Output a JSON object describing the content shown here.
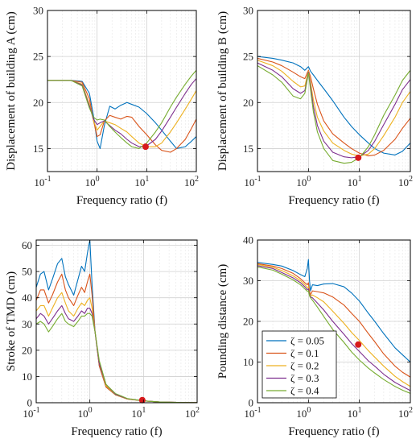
{
  "chart_data": [
    {
      "type": "line",
      "ylabel": "Displacement of building A (cm)",
      "xlabel": "Frequency ratio (f)",
      "xscale": "log",
      "xlim": [
        0.1,
        100
      ],
      "ylim": [
        12.5,
        30
      ],
      "yticks": [
        15,
        20,
        25,
        30
      ],
      "grid": true,
      "series": [
        {
          "color": "#0072BD",
          "x": [
            0.1,
            0.3,
            0.5,
            0.7,
            0.85,
            1.0,
            1.15,
            1.4,
            1.8,
            2.3,
            3.0,
            4.0,
            5.0,
            7.0,
            10,
            15,
            20,
            30,
            40,
            60,
            80,
            100
          ],
          "y": [
            22.4,
            22.4,
            22.3,
            21.0,
            18.5,
            15.8,
            15.0,
            17.5,
            19.6,
            19.3,
            19.7,
            20.0,
            19.8,
            19.5,
            18.8,
            17.8,
            17.0,
            15.8,
            15.0,
            15.2,
            15.8,
            16.3
          ]
        },
        {
          "color": "#D95319",
          "x": [
            0.1,
            0.3,
            0.5,
            0.7,
            0.85,
            1.0,
            1.15,
            1.4,
            1.8,
            2.3,
            3.0,
            4.0,
            5.0,
            7.0,
            10,
            15,
            20,
            30,
            40,
            60,
            80,
            100
          ],
          "y": [
            22.4,
            22.4,
            22.2,
            20.4,
            18.0,
            16.3,
            16.5,
            18.0,
            18.6,
            18.4,
            18.2,
            18.5,
            18.4,
            17.4,
            16.5,
            15.4,
            14.8,
            14.6,
            15.0,
            16.0,
            17.2,
            18.2
          ]
        },
        {
          "color": "#EDB120",
          "x": [
            0.1,
            0.3,
            0.5,
            0.7,
            0.85,
            1.0,
            1.15,
            1.4,
            1.8,
            2.3,
            3.0,
            4.0,
            5.0,
            7.0,
            10,
            15,
            20,
            30,
            40,
            60,
            80,
            100
          ],
          "y": [
            22.4,
            22.4,
            22.0,
            19.8,
            18.0,
            17.0,
            17.4,
            18.0,
            17.8,
            17.6,
            17.2,
            16.8,
            16.3,
            15.6,
            15.2,
            15.2,
            15.6,
            16.8,
            17.8,
            19.3,
            20.4,
            21.3
          ]
        },
        {
          "color": "#7E2F8E",
          "x": [
            0.1,
            0.3,
            0.5,
            0.7,
            0.85,
            1.0,
            1.15,
            1.4,
            1.8,
            2.3,
            3.0,
            4.0,
            5.0,
            7.0,
            10,
            15,
            20,
            30,
            40,
            60,
            80,
            100
          ],
          "y": [
            22.4,
            22.4,
            21.9,
            19.6,
            18.2,
            17.6,
            17.8,
            18.0,
            17.5,
            17.0,
            16.6,
            16.0,
            15.6,
            15.2,
            15.3,
            16.0,
            16.9,
            18.4,
            19.5,
            21.0,
            22.0,
            22.6
          ]
        },
        {
          "color": "#77AC30",
          "x": [
            0.1,
            0.3,
            0.5,
            0.7,
            0.85,
            1.0,
            1.15,
            1.4,
            1.8,
            2.3,
            3.0,
            4.0,
            5.0,
            7.0,
            10,
            15,
            20,
            30,
            40,
            60,
            80,
            100
          ],
          "y": [
            22.4,
            22.4,
            21.8,
            19.4,
            18.4,
            18.1,
            18.2,
            18.1,
            17.4,
            16.8,
            16.2,
            15.6,
            15.2,
            15.0,
            15.6,
            16.8,
            17.8,
            19.5,
            20.6,
            22.0,
            22.9,
            23.5
          ]
        }
      ],
      "marker": {
        "x": 9.5,
        "y": 15.2,
        "color": "#d7191c"
      }
    },
    {
      "type": "line",
      "ylabel": "Displacement of building B (cm)",
      "xlabel": "Frequency ratio (f)",
      "xscale": "log",
      "xlim": [
        0.1,
        100
      ],
      "ylim": [
        12.5,
        30
      ],
      "yticks": [
        15,
        20,
        25,
        30
      ],
      "grid": true,
      "series": [
        {
          "color": "#0072BD",
          "x": [
            0.1,
            0.2,
            0.3,
            0.5,
            0.7,
            0.85,
            1.0,
            1.1,
            1.25,
            1.5,
            2.0,
            3.0,
            5.0,
            7.0,
            10,
            15,
            20,
            30,
            50,
            70,
            100
          ],
          "y": [
            25.0,
            24.8,
            24.6,
            24.3,
            23.9,
            23.5,
            23.9,
            23.4,
            23.0,
            22.4,
            21.5,
            20.2,
            18.4,
            17.4,
            16.5,
            15.6,
            15.0,
            14.5,
            14.3,
            14.7,
            15.6
          ]
        },
        {
          "color": "#D95319",
          "x": [
            0.1,
            0.2,
            0.3,
            0.5,
            0.7,
            0.85,
            1.0,
            1.1,
            1.25,
            1.5,
            2.0,
            3.0,
            5.0,
            7.0,
            10,
            15,
            20,
            30,
            50,
            70,
            100
          ],
          "y": [
            24.8,
            24.4,
            24.0,
            23.3,
            22.8,
            22.6,
            23.5,
            22.8,
            21.5,
            19.8,
            18.0,
            16.6,
            15.6,
            15.0,
            14.5,
            14.2,
            14.3,
            14.8,
            16.0,
            17.2,
            18.3
          ]
        },
        {
          "color": "#EDB120",
          "x": [
            0.1,
            0.2,
            0.3,
            0.5,
            0.7,
            0.85,
            1.0,
            1.1,
            1.25,
            1.5,
            2.0,
            3.0,
            5.0,
            7.0,
            10,
            15,
            20,
            30,
            50,
            70,
            100
          ],
          "y": [
            24.6,
            24.0,
            23.4,
            22.3,
            21.7,
            21.8,
            23.4,
            22.2,
            20.3,
            18.4,
            16.9,
            15.6,
            14.8,
            14.4,
            14.2,
            14.4,
            15.0,
            16.4,
            18.4,
            20.0,
            21.2
          ]
        },
        {
          "color": "#7E2F8E",
          "x": [
            0.1,
            0.2,
            0.3,
            0.5,
            0.7,
            0.85,
            1.0,
            1.1,
            1.25,
            1.5,
            2.0,
            3.0,
            5.0,
            7.0,
            10,
            15,
            20,
            30,
            50,
            70,
            100
          ],
          "y": [
            24.3,
            23.5,
            22.8,
            21.5,
            21.0,
            21.3,
            23.3,
            21.8,
            19.6,
            17.5,
            15.8,
            14.6,
            14.1,
            14.0,
            14.1,
            14.8,
            15.8,
            17.6,
            19.8,
            21.4,
            22.5
          ]
        },
        {
          "color": "#77AC30",
          "x": [
            0.1,
            0.2,
            0.3,
            0.5,
            0.7,
            0.85,
            1.0,
            1.1,
            1.25,
            1.5,
            2.0,
            3.0,
            5.0,
            7.0,
            10,
            15,
            20,
            30,
            50,
            70,
            100
          ],
          "y": [
            24.0,
            23.0,
            22.2,
            20.7,
            20.4,
            21.0,
            23.2,
            21.4,
            19.0,
            16.8,
            15.0,
            13.7,
            13.4,
            13.5,
            14.0,
            15.2,
            16.5,
            18.6,
            20.8,
            22.4,
            23.5
          ]
        }
      ],
      "marker": {
        "x": 9.5,
        "y": 14.0,
        "color": "#d7191c"
      }
    },
    {
      "type": "line",
      "ylabel": "Stroke of TMD (cm)",
      "xlabel": "Frequency ratio (f)",
      "xscale": "log",
      "xlim": [
        0.1,
        100
      ],
      "ylim": [
        0,
        62
      ],
      "yticks": [
        0,
        10,
        20,
        30,
        40,
        50,
        60
      ],
      "grid": true,
      "series": [
        {
          "color": "#0072BD",
          "x": [
            0.1,
            0.12,
            0.14,
            0.17,
            0.2,
            0.25,
            0.3,
            0.35,
            0.4,
            0.5,
            0.6,
            0.7,
            0.8,
            0.9,
            1.0,
            1.1,
            1.25,
            1.5,
            2.0,
            3.0,
            5.0,
            10,
            20,
            50,
            100
          ],
          "y": [
            44,
            49,
            50,
            43,
            47,
            53,
            55,
            48,
            45,
            41,
            47,
            52,
            50,
            57,
            62,
            45,
            27,
            14,
            6,
            3,
            1.5,
            0.7,
            0.3,
            0.1,
            0.05
          ]
        },
        {
          "color": "#D95319",
          "x": [
            0.1,
            0.12,
            0.14,
            0.17,
            0.2,
            0.25,
            0.3,
            0.35,
            0.4,
            0.5,
            0.6,
            0.7,
            0.8,
            0.9,
            1.0,
            1.1,
            1.25,
            1.5,
            2.0,
            3.0,
            5.0,
            10,
            20,
            50,
            100
          ],
          "y": [
            39,
            43,
            43,
            38,
            41,
            46,
            49,
            43,
            40,
            37,
            41,
            44,
            42,
            46,
            49,
            41,
            27,
            14,
            6,
            3,
            1.4,
            0.7,
            0.3,
            0.1,
            0.05
          ]
        },
        {
          "color": "#EDB120",
          "x": [
            0.1,
            0.12,
            0.14,
            0.17,
            0.2,
            0.25,
            0.3,
            0.35,
            0.4,
            0.5,
            0.6,
            0.7,
            0.8,
            0.9,
            1.0,
            1.1,
            1.25,
            1.5,
            2.0,
            3.0,
            5.0,
            10,
            20,
            50,
            100
          ],
          "y": [
            35,
            37,
            37,
            33,
            36,
            40,
            42,
            38,
            35,
            33,
            36,
            38,
            37,
            39,
            40,
            36,
            27,
            15,
            6.5,
            3,
            1.4,
            0.7,
            0.3,
            0.1,
            0.05
          ]
        },
        {
          "color": "#7E2F8E",
          "x": [
            0.1,
            0.12,
            0.14,
            0.17,
            0.2,
            0.25,
            0.3,
            0.35,
            0.4,
            0.5,
            0.6,
            0.7,
            0.8,
            0.9,
            1.0,
            1.1,
            1.25,
            1.5,
            2.0,
            3.0,
            5.0,
            10,
            20,
            50,
            100
          ],
          "y": [
            32,
            34,
            33,
            30,
            32,
            35,
            37,
            34,
            32,
            31,
            33,
            35,
            34,
            36,
            36,
            34,
            27,
            15,
            7,
            3.2,
            1.5,
            0.7,
            0.3,
            0.1,
            0.05
          ]
        },
        {
          "color": "#77AC30",
          "x": [
            0.1,
            0.12,
            0.14,
            0.17,
            0.2,
            0.25,
            0.3,
            0.35,
            0.4,
            0.5,
            0.6,
            0.7,
            0.8,
            0.9,
            1.0,
            1.1,
            1.25,
            1.5,
            2.0,
            3.0,
            5.0,
            10,
            20,
            50,
            100
          ],
          "y": [
            30,
            31,
            30,
            27,
            29,
            32,
            34,
            31,
            30,
            29,
            31,
            33,
            33,
            34,
            34,
            33,
            27,
            16,
            7,
            3.5,
            1.6,
            0.7,
            0.3,
            0.1,
            0.05
          ]
        }
      ],
      "marker": {
        "x": 9.5,
        "y": 1.0,
        "color": "#d7191c"
      }
    },
    {
      "type": "line",
      "ylabel": "Pounding distance (cm)",
      "xlabel": "Frequency ratio (f)",
      "xscale": "log",
      "xlim": [
        0.1,
        100
      ],
      "ylim": [
        0,
        40
      ],
      "yticks": [
        0,
        10,
        20,
        30,
        40
      ],
      "grid": true,
      "legend": {
        "position": "bottom-left",
        "items": [
          "ζ = 0.05",
          "ζ = 0.1",
          "ζ = 0.2",
          "ζ = 0.3",
          "ζ = 0.4"
        ]
      },
      "series": [
        {
          "color": "#0072BD",
          "x": [
            0.1,
            0.2,
            0.3,
            0.5,
            0.7,
            0.85,
            0.95,
            1.0,
            1.05,
            1.1,
            1.2,
            1.5,
            2.0,
            3.0,
            5.0,
            7.0,
            10,
            15,
            20,
            30,
            50,
            70,
            100
          ],
          "y": [
            34.5,
            34.0,
            33.6,
            32.5,
            31.5,
            31.0,
            33.0,
            35.2,
            30.0,
            27.5,
            29.0,
            28.8,
            29.2,
            29.3,
            28.5,
            27.0,
            25.0,
            22.0,
            20.0,
            17.0,
            13.5,
            11.8,
            10.0
          ]
        },
        {
          "color": "#D95319",
          "x": [
            0.1,
            0.2,
            0.3,
            0.5,
            0.7,
            0.85,
            0.95,
            1.0,
            1.05,
            1.1,
            1.2,
            1.5,
            2.0,
            3.0,
            5.0,
            7.0,
            10,
            15,
            20,
            30,
            50,
            70,
            100
          ],
          "y": [
            34.2,
            33.6,
            33.0,
            31.8,
            30.5,
            29.5,
            29.0,
            29.5,
            27.5,
            26.5,
            27.5,
            27.3,
            27.0,
            26.0,
            24.0,
            22.0,
            20.0,
            17.0,
            15.0,
            12.0,
            9.0,
            7.5,
            6.3
          ]
        },
        {
          "color": "#EDB120",
          "x": [
            0.1,
            0.2,
            0.3,
            0.5,
            0.7,
            0.85,
            0.95,
            1.0,
            1.05,
            1.1,
            1.2,
            1.5,
            2.0,
            3.0,
            5.0,
            7.0,
            10,
            15,
            20,
            30,
            50,
            70,
            100
          ],
          "y": [
            34.0,
            33.3,
            32.5,
            31.2,
            30.0,
            29.0,
            28.3,
            28.5,
            27.0,
            26.2,
            26.5,
            25.8,
            24.8,
            22.5,
            19.5,
            17.3,
            15.3,
            12.8,
            11.2,
            9.0,
            6.5,
            5.2,
            4.0
          ]
        },
        {
          "color": "#7E2F8E",
          "x": [
            0.1,
            0.2,
            0.3,
            0.5,
            0.7,
            0.85,
            0.95,
            1.0,
            1.05,
            1.1,
            1.2,
            1.5,
            2.0,
            3.0,
            5.0,
            7.0,
            10,
            15,
            20,
            30,
            50,
            70,
            100
          ],
          "y": [
            33.7,
            33.0,
            32.0,
            30.7,
            29.5,
            28.5,
            27.8,
            28.0,
            26.6,
            26.0,
            25.8,
            24.5,
            22.8,
            20.0,
            16.8,
            14.6,
            12.6,
            10.3,
            9.0,
            7.0,
            5.0,
            4.0,
            3.0
          ]
        },
        {
          "color": "#77AC30",
          "x": [
            0.1,
            0.2,
            0.3,
            0.5,
            0.7,
            0.85,
            0.95,
            1.0,
            1.05,
            1.1,
            1.2,
            1.5,
            2.0,
            3.0,
            5.0,
            7.0,
            10,
            15,
            20,
            30,
            50,
            70,
            100
          ],
          "y": [
            33.4,
            32.6,
            31.6,
            30.2,
            29.0,
            28.0,
            27.4,
            27.5,
            26.3,
            25.8,
            25.2,
            23.5,
            21.2,
            18.0,
            14.8,
            12.5,
            10.5,
            8.5,
            7.3,
            5.7,
            4.0,
            3.1,
            2.3
          ]
        }
      ],
      "marker": {
        "x": 9.5,
        "y": 14.3,
        "color": "#d7191c"
      }
    }
  ]
}
